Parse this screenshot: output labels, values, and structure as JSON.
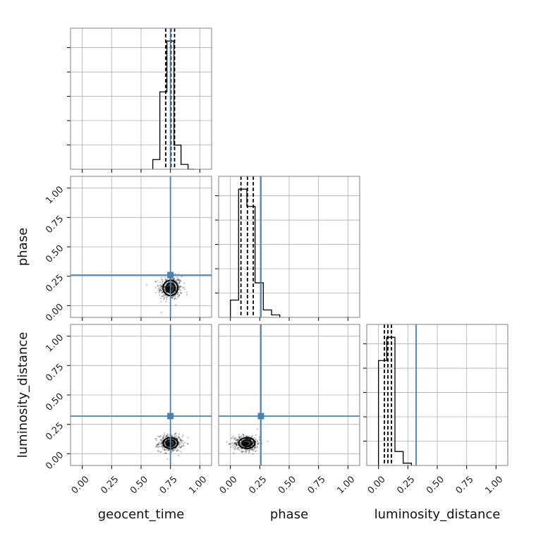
{
  "chart_data": {
    "type": "corner",
    "parameters": [
      "geocent_time",
      "phase",
      "luminosity_distance"
    ],
    "axis_range": [
      -0.1,
      1.1
    ],
    "ticks": [
      0.0,
      0.25,
      0.5,
      0.75,
      1.0
    ],
    "tick_labels": [
      "0.00",
      "0.25",
      "0.50",
      "0.75",
      "1.00"
    ],
    "grid": true,
    "colors": {
      "truth": "#4682b4",
      "hist": "#000000",
      "grid": "#b0b0b0",
      "frame": "#808080"
    },
    "truths": {
      "geocent_time": 0.75,
      "phase": 0.26,
      "luminosity_distance": 0.32
    },
    "histograms": [
      {
        "parameter": "geocent_time",
        "bin_edges": [
          0.6,
          0.66,
          0.72,
          0.78,
          0.84,
          0.9,
          0.96
        ],
        "counts": [
          4,
          32,
          53,
          10,
          2,
          0
        ],
        "quantiles": [
          0.71,
          0.755,
          0.785
        ]
      },
      {
        "parameter": "phase",
        "bin_edges": [
          0.0,
          0.07,
          0.14,
          0.21,
          0.28,
          0.35,
          0.42
        ],
        "counts": [
          7,
          52,
          45,
          14,
          3,
          1
        ],
        "quantiles": [
          0.09,
          0.145,
          0.195
        ]
      },
      {
        "parameter": "luminosity_distance",
        "bin_edges": [
          0.0,
          0.07,
          0.14,
          0.21,
          0.28
        ],
        "counts": [
          45,
          55,
          6,
          1
        ],
        "quantiles": [
          0.05,
          0.08,
          0.11
        ]
      }
    ],
    "scatter_2d": [
      {
        "x": "geocent_time",
        "y": "phase",
        "center": [
          0.75,
          0.15
        ],
        "spread": [
          0.05,
          0.05
        ]
      },
      {
        "x": "geocent_time",
        "y": "luminosity_distance",
        "center": [
          0.75,
          0.09
        ],
        "spread": [
          0.05,
          0.035
        ]
      },
      {
        "x": "phase",
        "y": "luminosity_distance",
        "center": [
          0.14,
          0.09
        ],
        "spread": [
          0.055,
          0.035
        ]
      }
    ]
  }
}
